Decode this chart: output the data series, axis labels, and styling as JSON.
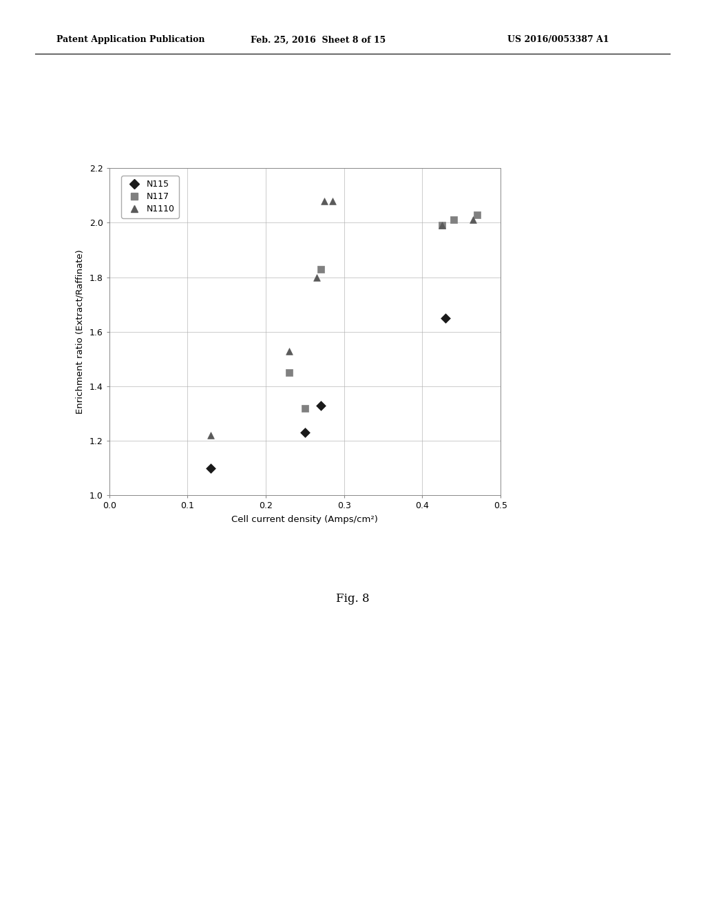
{
  "N115": {
    "x": [
      0.13,
      0.25,
      0.27,
      0.43
    ],
    "y": [
      1.1,
      1.23,
      1.33,
      1.65
    ],
    "color": "#1a1a1a",
    "marker": "D",
    "markersize": 7,
    "label": "N115"
  },
  "N117": {
    "x": [
      0.23,
      0.25,
      0.27,
      0.425,
      0.44,
      0.47
    ],
    "y": [
      1.45,
      1.32,
      1.83,
      1.99,
      2.01,
      2.03
    ],
    "color": "#808080",
    "marker": "s",
    "markersize": 7,
    "label": "N117"
  },
  "N1110": {
    "x": [
      0.13,
      0.23,
      0.265,
      0.275,
      0.285,
      0.425,
      0.465
    ],
    "y": [
      1.22,
      1.53,
      1.8,
      2.08,
      2.08,
      1.99,
      2.01
    ],
    "color": "#5a5a5a",
    "marker": "^",
    "markersize": 7,
    "label": "N1110"
  },
  "xlabel": "Cell current density (Amps/cm²)",
  "ylabel": "Enrichment ratio (Extract/Raffinate)",
  "xlim": [
    0.0,
    0.5
  ],
  "ylim": [
    1.0,
    2.2
  ],
  "xticks": [
    0.0,
    0.1,
    0.2,
    0.3,
    0.4,
    0.5
  ],
  "yticks": [
    1.0,
    1.2,
    1.4,
    1.6,
    1.8,
    2.0,
    2.2
  ],
  "header_left": "Patent Application Publication",
  "header_mid": "Feb. 25, 2016  Sheet 8 of 15",
  "header_right": "US 2016/0053387 A1",
  "fig_label": "Fig. 8",
  "background_color": "#ffffff",
  "plot_bg_color": "#ffffff",
  "grid_color": "#b0b0b0"
}
